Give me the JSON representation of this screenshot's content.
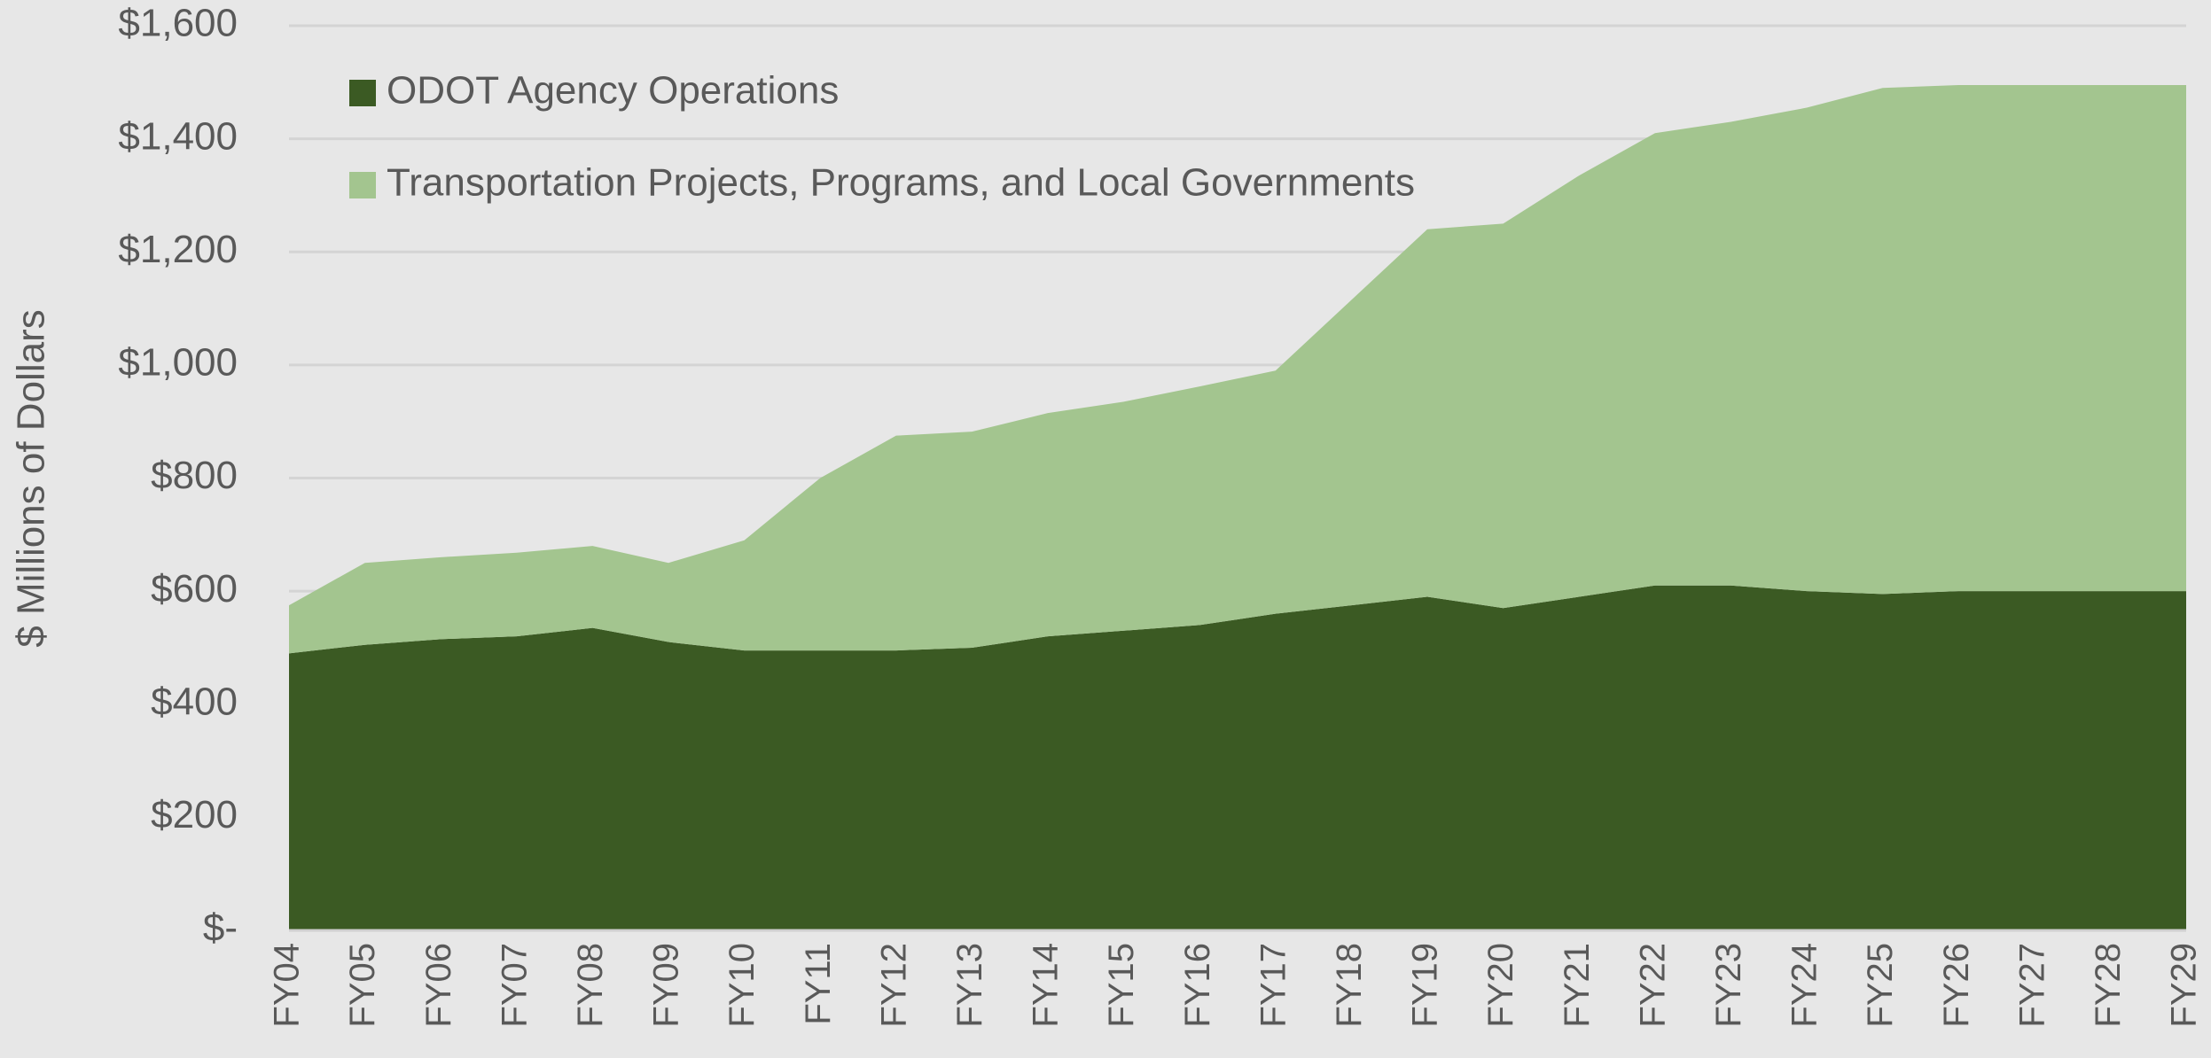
{
  "chart_data": {
    "type": "stacked_area",
    "y_label": "$ Millions of Dollars",
    "categories": [
      "FY04",
      "FY05",
      "FY06",
      "FY07",
      "FY08",
      "FY09",
      "FY10",
      "FY11",
      "FY12",
      "FY13",
      "FY14",
      "FY15",
      "FY16",
      "FY17",
      "FY18",
      "FY19",
      "FY20",
      "FY21",
      "FY22",
      "FY23",
      "FY24",
      "FY25",
      "FY26",
      "FY27",
      "FY28",
      "FY29"
    ],
    "series": [
      {
        "name": "ODOT Agency Operations",
        "color": "#3b5a23",
        "values": [
          490,
          505,
          515,
          520,
          535,
          510,
          495,
          495,
          495,
          500,
          520,
          530,
          540,
          560,
          575,
          590,
          570,
          590,
          610,
          610,
          600,
          595,
          600,
          600,
          600,
          600
        ]
      },
      {
        "name": "Transportation Projects, Programs, and Local Governments",
        "color": "#a3c58f",
        "values": [
          85,
          145,
          145,
          148,
          145,
          140,
          195,
          305,
          380,
          382,
          395,
          405,
          422,
          430,
          540,
          650,
          680,
          745,
          800,
          820,
          855,
          895,
          895,
          895,
          895,
          895
        ]
      }
    ],
    "ylim": [
      0,
      1600
    ],
    "yticks": [
      {
        "value": 0,
        "label": "$-"
      },
      {
        "value": 200,
        "label": "$200"
      },
      {
        "value": 400,
        "label": "$400"
      },
      {
        "value": 600,
        "label": "$600"
      },
      {
        "value": 800,
        "label": "$800"
      },
      {
        "value": 1000,
        "label": "$1,000"
      },
      {
        "value": 1200,
        "label": "$1,200"
      },
      {
        "value": 1400,
        "label": "$1,400"
      },
      {
        "value": 1600,
        "label": "$1,600"
      }
    ],
    "grid": true,
    "legend": "upper left"
  }
}
